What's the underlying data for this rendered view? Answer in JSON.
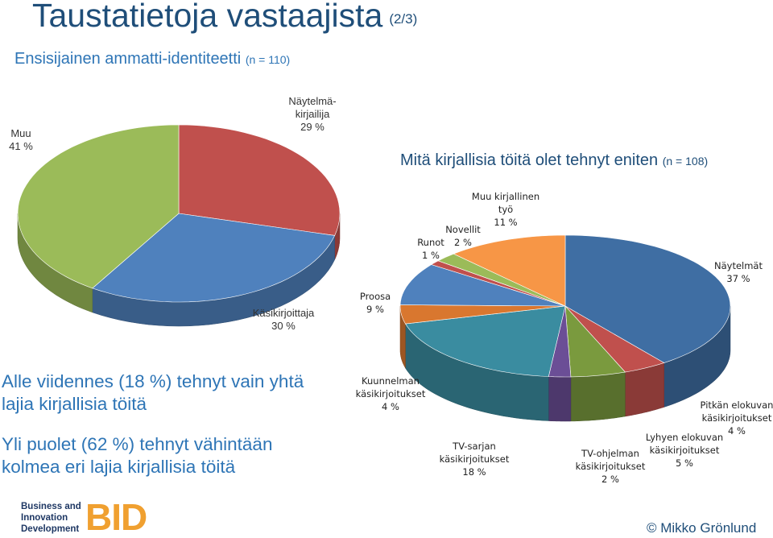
{
  "header": {
    "title": "Taustatietoja vastaajista",
    "title_suffix": "(2/3)"
  },
  "chart1": {
    "subtitle": "Ensisijainen ammatti-identiteetti",
    "n": "(n = 110)"
  },
  "chart2": {
    "subtitle": "Mitä kirjallisia töitä olet tehnyt eniten",
    "n": "(n = 108)"
  },
  "notes": {
    "line1a": "Alle viidennes (18 %) tehnyt vain yhtä",
    "line1b": "lajia kirjallisia töitä",
    "line2a": "Yli puolet (62 %) tehnyt vähintään",
    "line2b": "kolmea eri lajia kirjallisia töitä"
  },
  "footer": {
    "logo_line1": "Business and",
    "logo_line2": "Innovation",
    "logo_line3": "Development",
    "logo_mark": "BID",
    "copyright": "© Mikko Grönlund"
  },
  "chart_data": [
    {
      "type": "pie",
      "title": "Ensisijainen ammatti-identiteetti (n = 110)",
      "slices": [
        {
          "name": "Näytelmä- kirjailija",
          "lines": [
            "Näytelmä-",
            "kirjailija"
          ],
          "value": 29,
          "label": "29 %",
          "color": "#c0504d"
        },
        {
          "name": "Käsikirjoittaja",
          "lines": [
            "Käsikirjoittaja"
          ],
          "value": 30,
          "label": "30 %",
          "color": "#4f81bd"
        },
        {
          "name": "Muu",
          "lines": [
            "Muu"
          ],
          "value": 41,
          "label": "41 %",
          "color": "#9bbb59"
        }
      ]
    },
    {
      "type": "pie",
      "title": "Mitä kirjallisia töitä olet tehnyt eniten (n = 108)",
      "slices": [
        {
          "name": "Näytelmät",
          "lines": [
            "Näytelmät"
          ],
          "value": 37,
          "label": "37 %",
          "color": "#3f6ea3"
        },
        {
          "name": "Pitkän elokuvan käsikirjoitukset",
          "lines": [
            "Pitkän elokuvan",
            "käsikirjoitukset"
          ],
          "value": 4,
          "label": "4 %",
          "color": "#c0504d"
        },
        {
          "name": "Lyhyen elokuvan käsikirjoitukset",
          "lines": [
            "Lyhyen elokuvan",
            "käsikirjoitukset"
          ],
          "value": 5,
          "label": "5 %",
          "color": "#7a9a3e"
        },
        {
          "name": "TV-ohjelman käsikirjoitukset",
          "lines": [
            "TV-ohjelman",
            "käsikirjoitukset"
          ],
          "value": 2,
          "label": "2 %",
          "color": "#6b4e96"
        },
        {
          "name": "TV-sarjan käsikirjoitukset",
          "lines": [
            "TV-sarjan",
            "käsikirjoitukset"
          ],
          "value": 18,
          "label": "18 %",
          "color": "#3a8ca0"
        },
        {
          "name": "Kuunnelman käsikirjoitukset",
          "lines": [
            "Kuunnelman",
            "käsikirjoitukset"
          ],
          "value": 4,
          "label": "4 %",
          "color": "#d9772f"
        },
        {
          "name": "Proosa",
          "lines": [
            "Proosa"
          ],
          "value": 9,
          "label": "9 %",
          "color": "#4f81bd"
        },
        {
          "name": "Runot",
          "lines": [
            "Runot"
          ],
          "value": 1,
          "label": "1 %",
          "color": "#c0504d"
        },
        {
          "name": "Novellit",
          "lines": [
            "Novellit"
          ],
          "value": 2,
          "label": "2 %",
          "color": "#9bbb59"
        },
        {
          "name": "Muu kirjallinen työ",
          "lines": [
            "Muu kirjallinen",
            "työ"
          ],
          "value": 11,
          "label": "11 %",
          "color": "#f79646"
        }
      ]
    }
  ]
}
